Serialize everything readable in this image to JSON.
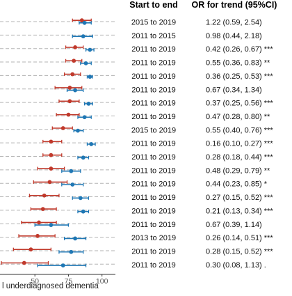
{
  "header": {
    "period_label": "Start to end",
    "or_label": "OR for trend (95%CI)"
  },
  "colors": {
    "red_series": "#c0392b",
    "blue_series": "#1f77b4",
    "grid": "#b3b3b3",
    "axis": "#333333"
  },
  "chart_data": {
    "type": "forest",
    "xlabel": "l underdiagnosed dementia",
    "xlim": [
      24,
      110
    ],
    "xticks": [
      50,
      75,
      100
    ],
    "grid": "dashed horizontal row guides",
    "rows": [
      {
        "period": "2015 to 2019",
        "or_text": "1.22 (0.59, 2.54)",
        "red": {
          "est": 85,
          "lo": 78,
          "hi": 92
        },
        "blue": {
          "est": 87,
          "lo": 83,
          "hi": 92
        }
      },
      {
        "period": "2011 to 2015",
        "or_text": "0.98 (0.44, 2.18)",
        "red": null,
        "blue": {
          "est": 86,
          "lo": 78,
          "hi": 93
        }
      },
      {
        "period": "2011 to 2019",
        "or_text": "0.42 (0.26, 0.67) ***",
        "red": {
          "est": 80,
          "lo": 73,
          "hi": 86
        },
        "blue": {
          "est": 91,
          "lo": 88,
          "hi": 94
        }
      },
      {
        "period": "2011 to 2019",
        "or_text": "0.55 (0.36, 0.83) **",
        "red": {
          "est": 79,
          "lo": 73,
          "hi": 85
        },
        "blue": {
          "est": 88,
          "lo": 84,
          "hi": 92
        }
      },
      {
        "period": "2011 to 2019",
        "or_text": "0.36 (0.25, 0.53) ***",
        "red": {
          "est": 78,
          "lo": 72,
          "hi": 84
        },
        "blue": {
          "est": 91,
          "lo": 89,
          "hi": 93
        }
      },
      {
        "period": "2011 to 2019",
        "or_text": "0.67 (0.34, 1.34)",
        "red": {
          "est": 76,
          "lo": 65,
          "hi": 85
        },
        "blue": {
          "est": 80,
          "lo": 74,
          "hi": 86
        }
      },
      {
        "period": "2011 to 2019",
        "or_text": "0.37 (0.25, 0.56) ***",
        "red": {
          "est": 76,
          "lo": 68,
          "hi": 83
        },
        "blue": {
          "est": 90,
          "lo": 87,
          "hi": 93
        }
      },
      {
        "period": "2011 to 2019",
        "or_text": "0.47 (0.28, 0.80) **",
        "red": {
          "est": 75,
          "lo": 66,
          "hi": 83
        },
        "blue": {
          "est": 87,
          "lo": 82,
          "hi": 92
        }
      },
      {
        "period": "2015 to 2019",
        "or_text": "0.55 (0.40, 0.76) ***",
        "red": {
          "est": 71,
          "lo": 63,
          "hi": 78
        },
        "blue": {
          "est": 82,
          "lo": 79,
          "hi": 86
        }
      },
      {
        "period": "2011 to 2019",
        "or_text": "0.16 (0.10, 0.27) ***",
        "red": {
          "est": 62,
          "lo": 56,
          "hi": 70
        },
        "blue": {
          "est": 92,
          "lo": 89,
          "hi": 95
        }
      },
      {
        "period": "2011 to 2019",
        "or_text": "0.28 (0.18, 0.44) ***",
        "red": {
          "est": 62,
          "lo": 56,
          "hi": 70
        },
        "blue": {
          "est": 86,
          "lo": 82,
          "hi": 90
        }
      },
      {
        "period": "2011 to 2019",
        "or_text": "0.48 (0.29, 0.79) **",
        "red": {
          "est": 62,
          "lo": 52,
          "hi": 72
        },
        "blue": {
          "est": 77,
          "lo": 70,
          "hi": 84
        }
      },
      {
        "period": "2011 to 2019",
        "or_text": "0.44 (0.23, 0.85) *",
        "red": {
          "est": 61,
          "lo": 49,
          "hi": 74
        },
        "blue": {
          "est": 78,
          "lo": 70,
          "hi": 86
        }
      },
      {
        "period": "2011 to 2019",
        "or_text": "0.27 (0.15, 0.52) ***",
        "red": {
          "est": 57,
          "lo": 46,
          "hi": 68
        },
        "blue": {
          "est": 84,
          "lo": 78,
          "hi": 90
        }
      },
      {
        "period": "2011 to 2019",
        "or_text": "0.21 (0.13, 0.34) ***",
        "red": {
          "est": 56,
          "lo": 47,
          "hi": 66
        },
        "blue": {
          "est": 86,
          "lo": 82,
          "hi": 90
        }
      },
      {
        "period": "2011 to 2019",
        "or_text": "0.67 (0.39, 1.14)",
        "red": {
          "est": 53,
          "lo": 40,
          "hi": 66
        },
        "blue": {
          "est": 62,
          "lo": 50,
          "hi": 75
        }
      },
      {
        "period": "2013 to 2019",
        "or_text": "0.26 (0.14, 0.51) ***",
        "red": {
          "est": 52,
          "lo": 38,
          "hi": 65
        },
        "blue": {
          "est": 80,
          "lo": 72,
          "hi": 88
        }
      },
      {
        "period": "2011 to 2019",
        "or_text": "0.28 (0.15, 0.52) ***",
        "red": {
          "est": 47,
          "lo": 34,
          "hi": 62
        },
        "blue": {
          "est": 77,
          "lo": 68,
          "hi": 86
        }
      },
      {
        "period": "2011 to 2019",
        "or_text": "0.30 (0.08, 1.13) .",
        "red": {
          "est": 42,
          "lo": 25,
          "hi": 60
        },
        "blue": {
          "est": 71,
          "lo": 52,
          "hi": 88
        }
      }
    ]
  }
}
